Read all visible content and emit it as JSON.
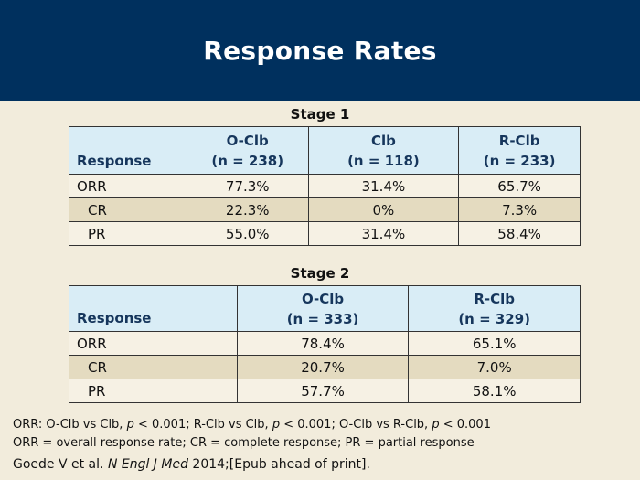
{
  "slide": {
    "title": "Response Rates"
  },
  "stage1": {
    "label": "Stage 1",
    "response_header": "Response",
    "columns": [
      {
        "name": "O-Clb",
        "n": "(n = 238)"
      },
      {
        "name": "Clb",
        "n": "(n = 118)"
      },
      {
        "name": "R-Clb",
        "n": "(n = 233)"
      }
    ],
    "rows": [
      {
        "label": "ORR",
        "values": [
          "77.3%",
          "31.4%",
          "65.7%"
        ]
      },
      {
        "label": "CR",
        "values": [
          "22.3%",
          "0%",
          "7.3%"
        ]
      },
      {
        "label": "PR",
        "values": [
          "55.0%",
          "31.4%",
          "58.4%"
        ]
      }
    ]
  },
  "stage2": {
    "label": "Stage 2",
    "response_header": "Response",
    "columns": [
      {
        "name": "O-Clb",
        "n": "(n = 333)"
      },
      {
        "name": "R-Clb",
        "n": "(n = 329)"
      }
    ],
    "rows": [
      {
        "label": "ORR",
        "values": [
          "78.4%",
          "65.1%"
        ]
      },
      {
        "label": "CR",
        "values": [
          "20.7%",
          "7.0%"
        ]
      },
      {
        "label": "PR",
        "values": [
          "57.7%",
          "58.1%"
        ]
      }
    ]
  },
  "footnotes": {
    "pvalues": [
      {
        "text": "ORR: O-Clb vs Clb, ",
        "italic": false
      },
      {
        "text": "p",
        "italic": true
      },
      {
        "text": " < 0.001; R-Clb vs Clb, ",
        "italic": false
      },
      {
        "text": "p",
        "italic": true
      },
      {
        "text": " < 0.001; O-Clb vs R-Clb, ",
        "italic": false
      },
      {
        "text": "p",
        "italic": true
      },
      {
        "text": " < 0.001",
        "italic": false
      }
    ],
    "abbreviations": "ORR = overall response rate; CR = complete response; PR = partial response"
  },
  "reference": [
    {
      "text": "Goede V et al. ",
      "italic": false
    },
    {
      "text": "N Engl J Med",
      "italic": true
    },
    {
      "text": " 2014;[Epub ahead of print].",
      "italic": false
    }
  ],
  "colors": {
    "title_bar": "#00305e",
    "background": "#f2ecdc",
    "header_fill": "#d9edf6",
    "header_text": "#16365c",
    "shaded_row": "#e4dbc0"
  }
}
